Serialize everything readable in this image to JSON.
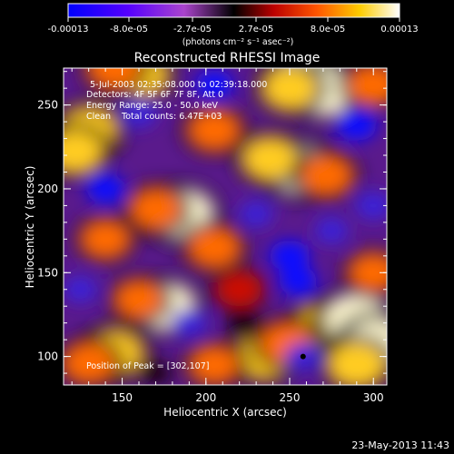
{
  "colorbar": {
    "ticks": [
      "-0.00013",
      "-8.0e-05",
      "-2.7e-05",
      "2.7e-05",
      "8.0e-05",
      "0.00013"
    ],
    "units": "(photons cm⁻² s⁻¹ asec⁻²)",
    "colors": [
      "#0000ff",
      "#6600ff",
      "#9933cc",
      "#000000",
      "#cc0000",
      "#ff6600",
      "#ffcc00",
      "#ffffff"
    ]
  },
  "title": "Reconstructed RHESSI Image",
  "annotations": {
    "line1": "5-Jul-2003 02:35:08.000 to 02:39:18.000",
    "line2": "Detectors: 4F 5F 6F 7F 8F, Att 0",
    "line3": "Energy Range: 25.0 - 50.0 keV",
    "line4": "Clean    Total counts: 6.47E+03",
    "peak": "Position of Peak = [302,107]"
  },
  "axes": {
    "xlabel": "Heliocentric X (arcsec)",
    "ylabel": "Heliocentric Y (arcsec)",
    "xticks": [
      "150",
      "200",
      "250",
      "300"
    ],
    "yticks": [
      "100",
      "150",
      "200",
      "250"
    ]
  },
  "timestamp": "23-May-2013 11:43",
  "image": {
    "blobs": [
      {
        "x": 260,
        "y": 271,
        "v": 1.0
      },
      {
        "x": 270,
        "y": 258,
        "v": 0.9
      },
      {
        "x": 250,
        "y": 260,
        "v": 0.7
      },
      {
        "x": 160,
        "y": 268,
        "v": 0.8
      },
      {
        "x": 145,
        "y": 272,
        "v": 0.6
      },
      {
        "x": 300,
        "y": 262,
        "v": 0.6
      },
      {
        "x": 130,
        "y": 235,
        "v": 0.8
      },
      {
        "x": 122,
        "y": 222,
        "v": 0.7
      },
      {
        "x": 205,
        "y": 235,
        "v": 0.6
      },
      {
        "x": 255,
        "y": 212,
        "v": 1.0
      },
      {
        "x": 238,
        "y": 218,
        "v": 0.7
      },
      {
        "x": 272,
        "y": 208,
        "v": 0.6
      },
      {
        "x": 185,
        "y": 185,
        "v": 1.0
      },
      {
        "x": 170,
        "y": 188,
        "v": 0.6
      },
      {
        "x": 140,
        "y": 170,
        "v": 0.5
      },
      {
        "x": 205,
        "y": 165,
        "v": 0.6
      },
      {
        "x": 175,
        "y": 130,
        "v": 0.9
      },
      {
        "x": 160,
        "y": 134,
        "v": 0.5
      },
      {
        "x": 270,
        "y": 118,
        "v": 0.8
      },
      {
        "x": 290,
        "y": 122,
        "v": 1.0
      },
      {
        "x": 302,
        "y": 107,
        "v": 1.0
      },
      {
        "x": 290,
        "y": 95,
        "v": 0.8
      },
      {
        "x": 235,
        "y": 100,
        "v": 0.8
      },
      {
        "x": 248,
        "y": 108,
        "v": 0.6
      },
      {
        "x": 145,
        "y": 102,
        "v": 0.8
      },
      {
        "x": 130,
        "y": 96,
        "v": 0.6
      },
      {
        "x": 205,
        "y": 95,
        "v": 0.5
      },
      {
        "x": 300,
        "y": 150,
        "v": 0.5
      },
      {
        "x": 220,
        "y": 140,
        "v": 0.4
      },
      {
        "x": 205,
        "y": 262,
        "v": -0.7
      },
      {
        "x": 290,
        "y": 238,
        "v": -0.8
      },
      {
        "x": 140,
        "y": 200,
        "v": -0.7
      },
      {
        "x": 250,
        "y": 160,
        "v": -0.8
      },
      {
        "x": 255,
        "y": 145,
        "v": -0.7
      },
      {
        "x": 190,
        "y": 120,
        "v": -0.6
      },
      {
        "x": 258,
        "y": 100,
        "v": -0.6
      },
      {
        "x": 160,
        "y": 245,
        "v": -0.6
      },
      {
        "x": 230,
        "y": 185,
        "v": -0.5
      },
      {
        "x": 275,
        "y": 175,
        "v": -0.5
      },
      {
        "x": 125,
        "y": 140,
        "v": -0.5
      },
      {
        "x": 300,
        "y": 190,
        "v": -0.6
      },
      {
        "x": 170,
        "y": 90,
        "v": -0.4
      },
      {
        "x": 222,
        "y": 120,
        "v": -0.4
      }
    ]
  }
}
